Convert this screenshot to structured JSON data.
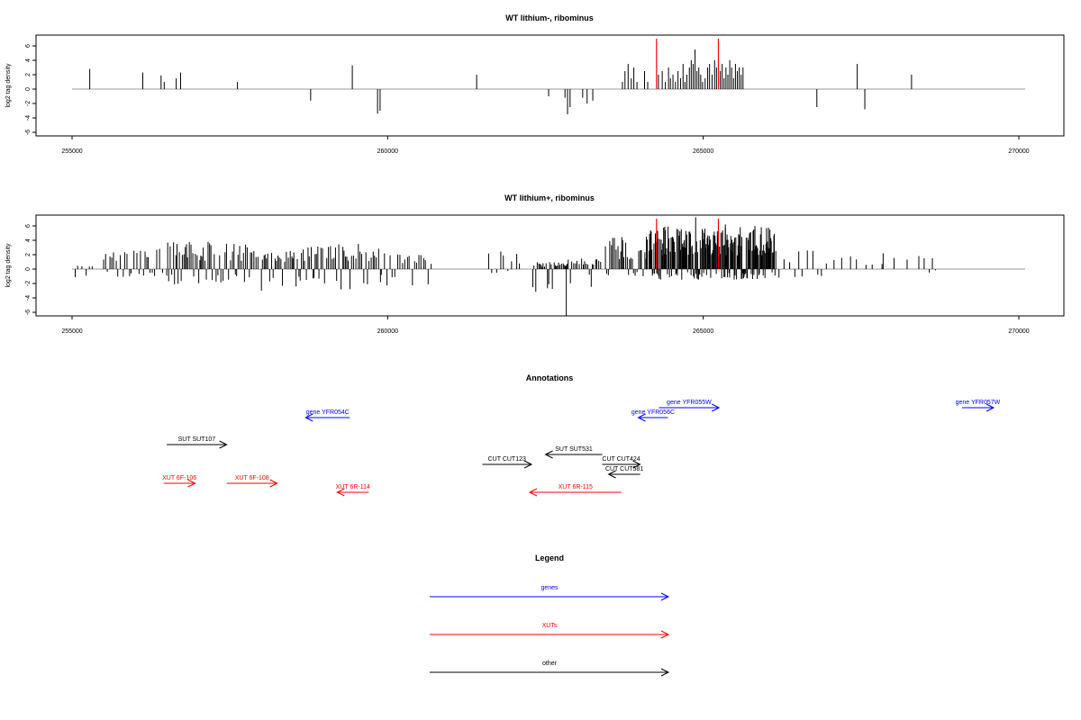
{
  "chart_data": [
    {
      "type": "bar",
      "title": "WT lithium-, ribominus",
      "xlabel": "",
      "ylabel": "log2 tag density",
      "xlim": [
        255000,
        270100
      ],
      "ylim": [
        -6.5,
        7.5
      ],
      "xticks": [
        255000,
        260000,
        265000,
        270000
      ],
      "yticks": [
        6,
        4,
        2,
        0,
        -2,
        -4,
        -6
      ],
      "grid": false,
      "baseline_color": "#999999",
      "bar_color": "#000000",
      "marker_color": "#ff0000",
      "markers": [
        {
          "x": 264260,
          "y": 7.0
        },
        {
          "x": 265240,
          "y": 7.0
        }
      ],
      "bars": [
        {
          "x": 255280,
          "y": 2.8
        },
        {
          "x": 256120,
          "y": 2.3
        },
        {
          "x": 256410,
          "y": 1.9
        },
        {
          "x": 256460,
          "y": 1.0
        },
        {
          "x": 256650,
          "y": 1.5
        },
        {
          "x": 256720,
          "y": 2.3
        },
        {
          "x": 257620,
          "y": 1.0
        },
        {
          "x": 258780,
          "y": -1.6
        },
        {
          "x": 259440,
          "y": 3.3
        },
        {
          "x": 259840,
          "y": -3.4
        },
        {
          "x": 259880,
          "y": -3.0
        },
        {
          "x": 261410,
          "y": 2.0
        },
        {
          "x": 262550,
          "y": -1.0
        },
        {
          "x": 262810,
          "y": -1.2
        },
        {
          "x": 262850,
          "y": -3.5
        },
        {
          "x": 262890,
          "y": -2.5
        },
        {
          "x": 263090,
          "y": -1.2
        },
        {
          "x": 263160,
          "y": -2.0
        },
        {
          "x": 263250,
          "y": -1.6
        },
        {
          "x": 263720,
          "y": 1.0
        },
        {
          "x": 263760,
          "y": 2.5
        },
        {
          "x": 263810,
          "y": 3.5
        },
        {
          "x": 263860,
          "y": 1.5
        },
        {
          "x": 263900,
          "y": 3.0
        },
        {
          "x": 263950,
          "y": 1.0
        },
        {
          "x": 264070,
          "y": 2.5
        },
        {
          "x": 264120,
          "y": 1.0
        },
        {
          "x": 264290,
          "y": 2.0
        },
        {
          "x": 264350,
          "y": 2.5
        },
        {
          "x": 264400,
          "y": 1.0
        },
        {
          "x": 264450,
          "y": 3.0
        },
        {
          "x": 264480,
          "y": 1.5
        },
        {
          "x": 264520,
          "y": 2.0
        },
        {
          "x": 264560,
          "y": 1.0
        },
        {
          "x": 264600,
          "y": 2.5
        },
        {
          "x": 264640,
          "y": 1.5
        },
        {
          "x": 264680,
          "y": 3.5
        },
        {
          "x": 264710,
          "y": 1.0
        },
        {
          "x": 264740,
          "y": 2.0
        },
        {
          "x": 264780,
          "y": 3.0
        },
        {
          "x": 264810,
          "y": 4.0
        },
        {
          "x": 264840,
          "y": 3.5
        },
        {
          "x": 264870,
          "y": 5.5
        },
        {
          "x": 264900,
          "y": 2.5
        },
        {
          "x": 264930,
          "y": 3.0
        },
        {
          "x": 264960,
          "y": 2.0
        },
        {
          "x": 264990,
          "y": 1.0
        },
        {
          "x": 265030,
          "y": 1.5
        },
        {
          "x": 265070,
          "y": 3.0
        },
        {
          "x": 265100,
          "y": 3.5
        },
        {
          "x": 265140,
          "y": 2.0
        },
        {
          "x": 265180,
          "y": 4.0
        },
        {
          "x": 265210,
          "y": 3.0
        },
        {
          "x": 265270,
          "y": 2.5
        },
        {
          "x": 265300,
          "y": 3.5
        },
        {
          "x": 265330,
          "y": 1.5
        },
        {
          "x": 265360,
          "y": 3.0
        },
        {
          "x": 265390,
          "y": 2.0
        },
        {
          "x": 265420,
          "y": 4.0
        },
        {
          "x": 265450,
          "y": 3.0
        },
        {
          "x": 265480,
          "y": 1.5
        },
        {
          "x": 265510,
          "y": 3.5
        },
        {
          "x": 265540,
          "y": 2.5
        },
        {
          "x": 265570,
          "y": 3.0
        },
        {
          "x": 265600,
          "y": 2.0
        },
        {
          "x": 265630,
          "y": 3.0
        },
        {
          "x": 266800,
          "y": -2.5
        },
        {
          "x": 267440,
          "y": 3.5
        },
        {
          "x": 267560,
          "y": -2.8
        },
        {
          "x": 268300,
          "y": 2.0
        }
      ]
    },
    {
      "type": "bar",
      "title": "WT lithium+, ribominus",
      "xlabel": "",
      "ylabel": "log2 tag density",
      "xlim": [
        255000,
        270100
      ],
      "ylim": [
        -6.5,
        7.5
      ],
      "xticks": [
        255000,
        260000,
        265000,
        270000
      ],
      "yticks": [
        6,
        4,
        2,
        0,
        -2,
        -4,
        -6
      ],
      "grid": false,
      "baseline_color": "#999999",
      "bar_color": "#000000",
      "marker_color": "#ff0000",
      "markers": [
        {
          "x": 264260,
          "y": 7.0
        },
        {
          "x": 265240,
          "y": 7.0
        }
      ],
      "clusters": [
        {
          "from": 255050,
          "to": 255350,
          "step": 50,
          "max_up": 0.5,
          "max_down": 1.5
        },
        {
          "from": 255500,
          "to": 256450,
          "step": 35,
          "max_up": 3.0,
          "max_down": 1.2
        },
        {
          "from": 256500,
          "to": 257200,
          "step": 22,
          "max_up": 3.8,
          "max_down": 2.5
        },
        {
          "from": 257200,
          "to": 257950,
          "step": 25,
          "max_up": 3.6,
          "max_down": 2.0
        },
        {
          "from": 258000,
          "to": 259150,
          "step": 25,
          "max_up": 3.2,
          "max_down": 3.0
        },
        {
          "from": 259150,
          "to": 259900,
          "step": 28,
          "max_up": 3.5,
          "max_down": 3.5
        },
        {
          "from": 259900,
          "to": 260700,
          "step": 40,
          "max_up": 2.2,
          "max_down": 2.5
        },
        {
          "from": 261600,
          "to": 262150,
          "step": 60,
          "max_up": 2.5,
          "max_down": 0.6
        },
        {
          "from": 262300,
          "to": 262850,
          "step": 22,
          "max_up": 1.0,
          "max_down": 3.5
        },
        {
          "from": 262860,
          "to": 263400,
          "step": 28,
          "max_up": 1.5,
          "max_down": 2.5
        },
        {
          "from": 263450,
          "to": 264150,
          "step": 22,
          "max_up": 4.5,
          "max_down": 1.0
        },
        {
          "from": 264150,
          "to": 266150,
          "step": 10,
          "max_up": 6.0,
          "max_down": 1.5
        },
        {
          "from": 266200,
          "to": 266900,
          "step": 70,
          "max_up": 3.0,
          "max_down": 1.6
        },
        {
          "from": 266950,
          "to": 268750,
          "step": 150,
          "max_up": 2.0,
          "max_down": 0.5
        }
      ],
      "bars": [
        {
          "x": 262830,
          "y": -6.5
        },
        {
          "x": 264880,
          "y": 7.2
        },
        {
          "x": 264100,
          "y": 4.5
        },
        {
          "x": 265350,
          "y": 6.2
        },
        {
          "x": 265800,
          "y": 5.5
        },
        {
          "x": 267850,
          "y": 2.2
        },
        {
          "x": 268500,
          "y": 1.5
        },
        {
          "x": 268630,
          "y": 1.5
        }
      ]
    }
  ],
  "annotations": {
    "title": "Annotations",
    "features": [
      {
        "label": "gene YFR054C",
        "start": 258700,
        "end": 259400,
        "kind": "gene",
        "dir": "left",
        "row": 1
      },
      {
        "label": "gene YFR055W",
        "start": 264300,
        "end": 265250,
        "kind": "gene",
        "dir": "right",
        "row": 0
      },
      {
        "label": "gene YFR056C",
        "start": 263970,
        "end": 264440,
        "kind": "gene",
        "dir": "left",
        "row": 1
      },
      {
        "label": "gene YFR057W",
        "start": 269100,
        "end": 269600,
        "kind": "gene",
        "dir": "right",
        "row": 0
      },
      {
        "label": "SUT SUT107",
        "start": 256500,
        "end": 257450,
        "kind": "other",
        "dir": "right",
        "row": 2
      },
      {
        "label": "SUT SUT531",
        "start": 262500,
        "end": 263400,
        "kind": "other",
        "dir": "left",
        "row": 3
      },
      {
        "label": "CUT CUT123",
        "start": 261500,
        "end": 262280,
        "kind": "other",
        "dir": "right",
        "row": 4
      },
      {
        "label": "CUT CUT424",
        "start": 263400,
        "end": 264000,
        "kind": "other",
        "dir": "right",
        "row": 5
      },
      {
        "label": "CUT CUT581",
        "start": 263500,
        "end": 264000,
        "kind": "other",
        "dir": "left",
        "row": 6
      },
      {
        "label": "XUT 6F-106",
        "start": 256450,
        "end": 256950,
        "kind": "xut",
        "dir": "right",
        "row": 7
      },
      {
        "label": "XUT 6F-108",
        "start": 257450,
        "end": 258250,
        "kind": "xut",
        "dir": "right",
        "row": 7
      },
      {
        "label": "XUT 6R-114",
        "start": 259200,
        "end": 259700,
        "kind": "xut",
        "dir": "left",
        "row": 8
      },
      {
        "label": "XUT 6R-115",
        "start": 262250,
        "end": 263700,
        "kind": "xut",
        "dir": "left",
        "row": 8
      }
    ]
  },
  "legend": {
    "title": "Legend",
    "items": [
      {
        "label": "genes",
        "kind": "gene"
      },
      {
        "label": "XUTs",
        "kind": "xut"
      },
      {
        "label": "other",
        "kind": "other"
      }
    ]
  },
  "colors": {
    "gene": "#0000ff",
    "xut": "#ff0000",
    "other": "#000000"
  }
}
